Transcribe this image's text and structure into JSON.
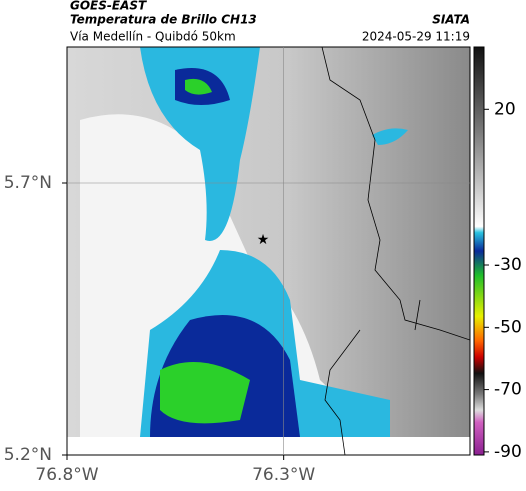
{
  "header": {
    "source": "GOES-EAST",
    "title": "Temperatura de Brillo CH13",
    "org": "SIATA",
    "subtitle": "Vía Medellín - Quibdó 50km",
    "datetime": "2024-05-29 11:19"
  },
  "map": {
    "xlim": [
      -76.8,
      -75.87
    ],
    "ylim": [
      5.2,
      5.95
    ],
    "xticks": [
      {
        "value": -76.8,
        "label": "76.8°W"
      },
      {
        "value": -76.3,
        "label": "76.3°W"
      }
    ],
    "yticks": [
      {
        "value": 5.2,
        "label": "5.2°N"
      },
      {
        "value": 5.7,
        "label": "5.7°N"
      }
    ],
    "grid": true
  },
  "colorbar": {
    "clim": [
      -91,
      40
    ],
    "ticks": [
      20,
      -30,
      -50,
      -70,
      -90
    ]
  }
}
